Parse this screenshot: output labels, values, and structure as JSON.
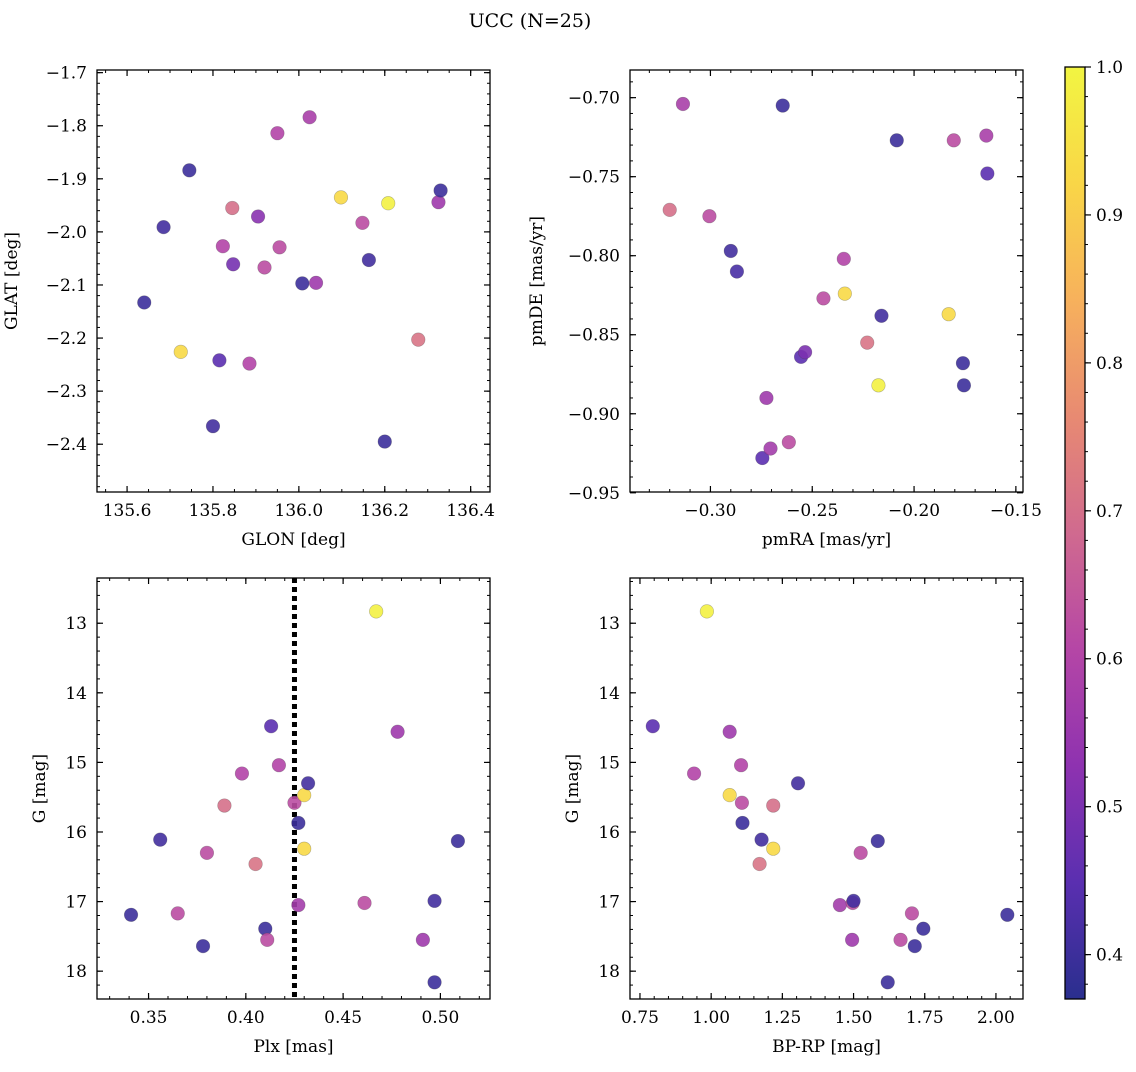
{
  "title": "UCC (N=25)",
  "colorbar": {
    "min": 0.37,
    "max": 1.0,
    "ticks": [
      0.4,
      0.5,
      0.6,
      0.7,
      0.8,
      0.9,
      1.0
    ],
    "colormap": "plasma",
    "colors": [
      "#2a2f8e",
      "#5a2fb0",
      "#8e32b0",
      "#b546a6",
      "#d06a8f",
      "#e88a72",
      "#f7b15c",
      "#f9d647",
      "#f2f542"
    ]
  },
  "chart_data": [
    {
      "type": "scatter",
      "xlabel": "GLON [deg]",
      "ylabel": "GLAT [deg]",
      "xlim": [
        135.53,
        136.445
      ],
      "ylim": [
        -2.49,
        -1.695
      ],
      "xticks": [
        135.6,
        135.8,
        136.0,
        136.2,
        136.4
      ],
      "yticks": [
        -2.4,
        -2.3,
        -2.2,
        -2.1,
        -2.0,
        -1.9,
        -1.8,
        -1.7
      ],
      "points": [
        {
          "x": 135.64,
          "y": -2.133,
          "c": 0.4
        },
        {
          "x": 135.685,
          "y": -1.991,
          "c": 0.41
        },
        {
          "x": 135.725,
          "y": -2.226,
          "c": 0.93
        },
        {
          "x": 135.745,
          "y": -1.884,
          "c": 0.4
        },
        {
          "x": 135.8,
          "y": -2.366,
          "c": 0.41
        },
        {
          "x": 135.815,
          "y": -2.242,
          "c": 0.45
        },
        {
          "x": 135.823,
          "y": -2.027,
          "c": 0.6
        },
        {
          "x": 135.845,
          "y": -1.955,
          "c": 0.7
        },
        {
          "x": 135.847,
          "y": -2.061,
          "c": 0.49
        },
        {
          "x": 135.885,
          "y": -2.248,
          "c": 0.6
        },
        {
          "x": 135.905,
          "y": -1.971,
          "c": 0.52
        },
        {
          "x": 135.92,
          "y": -2.067,
          "c": 0.62
        },
        {
          "x": 135.95,
          "y": -1.814,
          "c": 0.6
        },
        {
          "x": 135.955,
          "y": -2.029,
          "c": 0.62
        },
        {
          "x": 136.008,
          "y": -2.097,
          "c": 0.4
        },
        {
          "x": 136.025,
          "y": -1.784,
          "c": 0.58
        },
        {
          "x": 136.04,
          "y": -2.096,
          "c": 0.56
        },
        {
          "x": 136.098,
          "y": -1.935,
          "c": 0.93
        },
        {
          "x": 136.148,
          "y": -1.983,
          "c": 0.62
        },
        {
          "x": 136.163,
          "y": -2.053,
          "c": 0.41
        },
        {
          "x": 136.2,
          "y": -2.395,
          "c": 0.4
        },
        {
          "x": 136.208,
          "y": -1.946,
          "c": 0.99
        },
        {
          "x": 136.278,
          "y": -2.203,
          "c": 0.71
        },
        {
          "x": 136.325,
          "y": -1.944,
          "c": 0.56
        },
        {
          "x": 136.33,
          "y": -1.922,
          "c": 0.4
        }
      ]
    },
    {
      "type": "scatter",
      "xlabel": "pmRA [mas/yr]",
      "ylabel": "pmDE [mas/yr]",
      "xlim": [
        -0.3395,
        -0.1465
      ],
      "ylim": [
        -0.9495,
        -0.6825
      ],
      "xticks": [
        -0.3,
        -0.25,
        -0.2,
        -0.15
      ],
      "yticks": [
        -0.95,
        -0.9,
        -0.85,
        -0.8,
        -0.75,
        -0.7
      ],
      "points": [
        {
          "x": -0.32,
          "y": -0.771,
          "c": 0.7
        },
        {
          "x": -0.3135,
          "y": -0.704,
          "c": 0.58
        },
        {
          "x": -0.3005,
          "y": -0.775,
          "c": 0.62
        },
        {
          "x": -0.29,
          "y": -0.797,
          "c": 0.41
        },
        {
          "x": -0.287,
          "y": -0.81,
          "c": 0.42
        },
        {
          "x": -0.2745,
          "y": -0.928,
          "c": 0.45
        },
        {
          "x": -0.2725,
          "y": -0.89,
          "c": 0.56
        },
        {
          "x": -0.2705,
          "y": -0.922,
          "c": 0.57
        },
        {
          "x": -0.2645,
          "y": -0.705,
          "c": 0.4
        },
        {
          "x": -0.2615,
          "y": -0.918,
          "c": 0.62
        },
        {
          "x": -0.2555,
          "y": -0.864,
          "c": 0.45
        },
        {
          "x": -0.2535,
          "y": -0.861,
          "c": 0.5
        },
        {
          "x": -0.2445,
          "y": -0.827,
          "c": 0.62
        },
        {
          "x": -0.2345,
          "y": -0.802,
          "c": 0.6
        },
        {
          "x": -0.234,
          "y": -0.824,
          "c": 0.93
        },
        {
          "x": -0.223,
          "y": -0.855,
          "c": 0.71
        },
        {
          "x": -0.2175,
          "y": -0.882,
          "c": 0.99
        },
        {
          "x": -0.216,
          "y": -0.838,
          "c": 0.41
        },
        {
          "x": -0.2085,
          "y": -0.727,
          "c": 0.4
        },
        {
          "x": -0.183,
          "y": -0.837,
          "c": 0.93
        },
        {
          "x": -0.1805,
          "y": -0.727,
          "c": 0.62
        },
        {
          "x": -0.176,
          "y": -0.868,
          "c": 0.4
        },
        {
          "x": -0.1755,
          "y": -0.882,
          "c": 0.4
        },
        {
          "x": -0.1645,
          "y": -0.724,
          "c": 0.58
        },
        {
          "x": -0.164,
          "y": -0.748,
          "c": 0.45
        }
      ]
    },
    {
      "type": "scatter",
      "xlabel": "Plx [mas]",
      "ylabel": "G [mag]",
      "xlim": [
        0.3235,
        0.5255
      ],
      "ylim": [
        18.4,
        12.35
      ],
      "xticks": [
        0.35,
        0.4,
        0.45,
        0.5
      ],
      "yticks": [
        13,
        14,
        15,
        16,
        17,
        18
      ],
      "vline": {
        "x": 0.425,
        "style": "dotted",
        "color": "#000000"
      },
      "points": [
        {
          "x": 0.341,
          "y": 17.19,
          "c": 0.4
        },
        {
          "x": 0.356,
          "y": 16.11,
          "c": 0.41
        },
        {
          "x": 0.365,
          "y": 17.17,
          "c": 0.62
        },
        {
          "x": 0.378,
          "y": 17.64,
          "c": 0.4
        },
        {
          "x": 0.38,
          "y": 16.3,
          "c": 0.62
        },
        {
          "x": 0.389,
          "y": 15.62,
          "c": 0.7
        },
        {
          "x": 0.398,
          "y": 15.16,
          "c": 0.6
        },
        {
          "x": 0.405,
          "y": 16.46,
          "c": 0.71
        },
        {
          "x": 0.41,
          "y": 17.39,
          "c": 0.4
        },
        {
          "x": 0.411,
          "y": 17.55,
          "c": 0.62
        },
        {
          "x": 0.413,
          "y": 14.48,
          "c": 0.45
        },
        {
          "x": 0.417,
          "y": 15.04,
          "c": 0.6
        },
        {
          "x": 0.425,
          "y": 15.58,
          "c": 0.62
        },
        {
          "x": 0.427,
          "y": 15.87,
          "c": 0.4
        },
        {
          "x": 0.427,
          "y": 17.05,
          "c": 0.57
        },
        {
          "x": 0.43,
          "y": 15.47,
          "c": 0.93
        },
        {
          "x": 0.43,
          "y": 16.24,
          "c": 0.93
        },
        {
          "x": 0.432,
          "y": 15.3,
          "c": 0.41
        },
        {
          "x": 0.461,
          "y": 17.02,
          "c": 0.62
        },
        {
          "x": 0.467,
          "y": 12.83,
          "c": 0.99
        },
        {
          "x": 0.478,
          "y": 14.56,
          "c": 0.56
        },
        {
          "x": 0.491,
          "y": 17.55,
          "c": 0.56
        },
        {
          "x": 0.497,
          "y": 16.99,
          "c": 0.41
        },
        {
          "x": 0.497,
          "y": 18.16,
          "c": 0.4
        },
        {
          "x": 0.509,
          "y": 16.13,
          "c": 0.4
        }
      ]
    },
    {
      "type": "scatter",
      "xlabel": "BP-RP [mag]",
      "ylabel": "G [mag]",
      "xlim": [
        0.715,
        2.095
      ],
      "ylim": [
        18.4,
        12.35
      ],
      "xticks": [
        0.75,
        1.0,
        1.25,
        1.5,
        1.75,
        2.0
      ],
      "yticks": [
        13,
        14,
        15,
        16,
        17,
        18
      ],
      "points": [
        {
          "x": 0.795,
          "y": 14.48,
          "c": 0.45
        },
        {
          "x": 0.94,
          "y": 15.16,
          "c": 0.6
        },
        {
          "x": 0.985,
          "y": 12.83,
          "c": 0.99
        },
        {
          "x": 1.065,
          "y": 14.56,
          "c": 0.56
        },
        {
          "x": 1.065,
          "y": 15.47,
          "c": 0.93
        },
        {
          "x": 1.105,
          "y": 15.04,
          "c": 0.6
        },
        {
          "x": 1.108,
          "y": 15.58,
          "c": 0.62
        },
        {
          "x": 1.11,
          "y": 15.87,
          "c": 0.4
        },
        {
          "x": 1.17,
          "y": 16.46,
          "c": 0.71
        },
        {
          "x": 1.177,
          "y": 16.11,
          "c": 0.41
        },
        {
          "x": 1.218,
          "y": 15.62,
          "c": 0.7
        },
        {
          "x": 1.218,
          "y": 16.24,
          "c": 0.93
        },
        {
          "x": 1.305,
          "y": 15.3,
          "c": 0.41
        },
        {
          "x": 1.452,
          "y": 17.05,
          "c": 0.57
        },
        {
          "x": 1.495,
          "y": 17.55,
          "c": 0.56
        },
        {
          "x": 1.497,
          "y": 17.02,
          "c": 0.62
        },
        {
          "x": 1.5,
          "y": 16.99,
          "c": 0.41
        },
        {
          "x": 1.525,
          "y": 16.3,
          "c": 0.62
        },
        {
          "x": 1.585,
          "y": 16.13,
          "c": 0.4
        },
        {
          "x": 1.62,
          "y": 18.16,
          "c": 0.4
        },
        {
          "x": 1.665,
          "y": 17.55,
          "c": 0.62
        },
        {
          "x": 1.705,
          "y": 17.17,
          "c": 0.62
        },
        {
          "x": 1.715,
          "y": 17.64,
          "c": 0.4
        },
        {
          "x": 1.745,
          "y": 17.39,
          "c": 0.4
        },
        {
          "x": 2.04,
          "y": 17.19,
          "c": 0.4
        }
      ]
    }
  ]
}
